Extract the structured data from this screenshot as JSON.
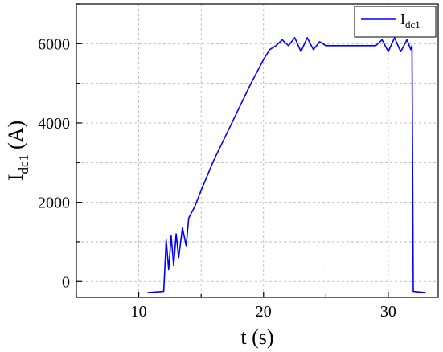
{
  "chart_data": {
    "type": "line",
    "xlabel": {
      "main": "t (s)"
    },
    "ylabel": {
      "main": "I",
      "sub": "dc1",
      "unit": "(A)"
    },
    "xlim": [
      5,
      34
    ],
    "ylim": [
      -400,
      7000
    ],
    "x_ticks": [
      10,
      20,
      30
    ],
    "y_ticks": [
      0,
      2000,
      4000,
      6000
    ],
    "x_tick_labels": [
      "10",
      "20",
      "30"
    ],
    "y_tick_labels": [
      "0",
      "2000",
      "4000",
      "6000"
    ],
    "grid": true,
    "legend": {
      "placement": "top-right"
    },
    "series": [
      {
        "name": {
          "main": "I",
          "sub": "dc1"
        },
        "color": "#0000ff",
        "x": [
          10.7,
          12.0,
          12.2,
          12.4,
          12.6,
          12.8,
          13.0,
          13.2,
          13.5,
          13.8,
          14.0,
          14.5,
          15.0,
          16.0,
          17.0,
          18.0,
          19.0,
          20.0,
          20.5,
          21.0,
          21.5,
          22.0,
          22.5,
          23.0,
          23.5,
          24.0,
          24.5,
          25.0,
          26.0,
          27.0,
          28.0,
          29.0,
          29.5,
          30.0,
          30.5,
          31.0,
          31.5,
          31.8,
          31.9,
          32.0,
          33.0
        ],
        "y": [
          -280,
          -250,
          1050,
          300,
          1150,
          400,
          1200,
          600,
          1350,
          900,
          1600,
          1900,
          2300,
          3050,
          3700,
          4350,
          5000,
          5600,
          5850,
          5950,
          6100,
          5950,
          6150,
          5800,
          6150,
          5850,
          6050,
          5950,
          5950,
          5950,
          5950,
          5950,
          6100,
          5800,
          6150,
          5800,
          6100,
          5850,
          5950,
          -250,
          -280
        ]
      }
    ]
  }
}
